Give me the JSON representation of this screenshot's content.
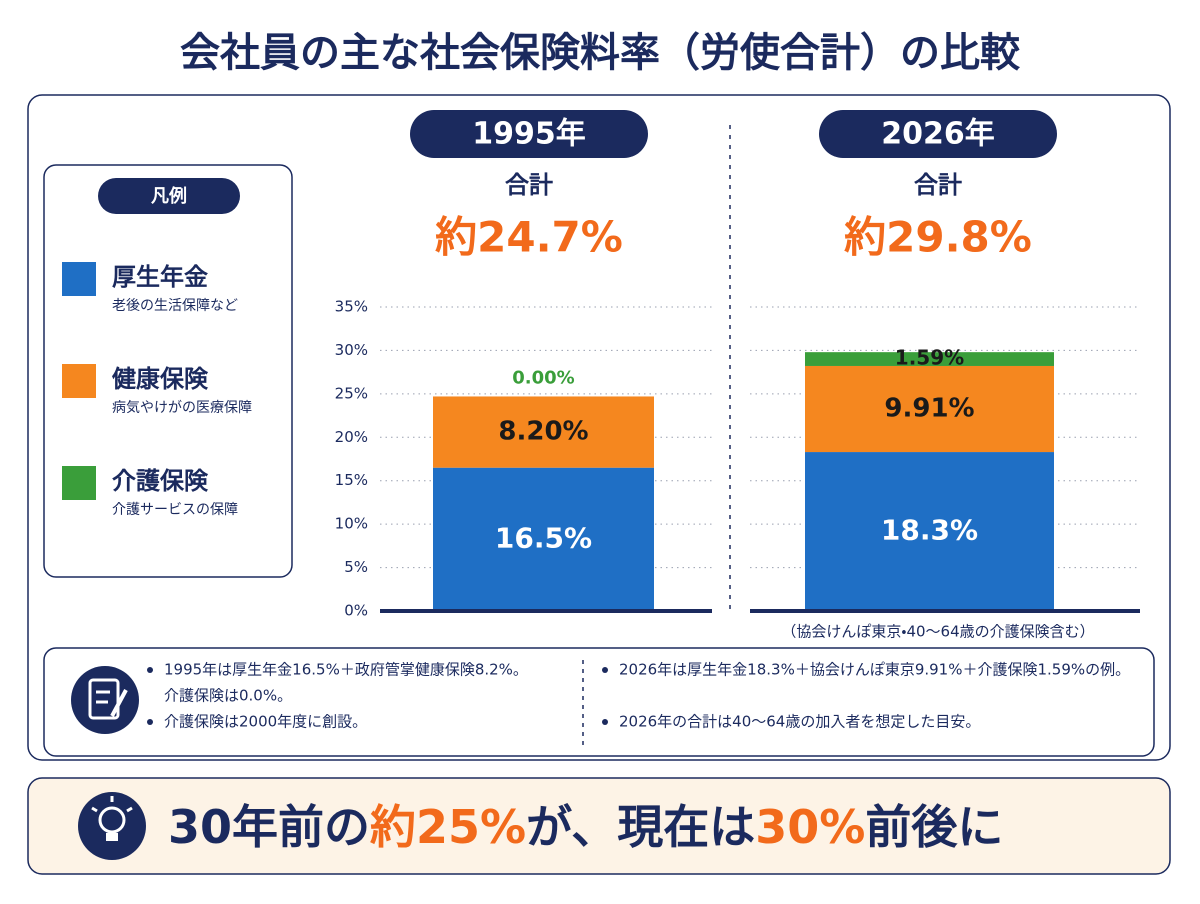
{
  "chart_data": {
    "type": "bar",
    "stacked": true,
    "title": "会社員の主な社会保険料率（労使合計）の比較",
    "legend_title": "凡例",
    "categories": [
      "1995年",
      "2026年"
    ],
    "total_caption": "合計",
    "total_labels": [
      "約24.7%",
      "約29.8%"
    ],
    "category_note": "（協会けんぽ東京・40～64歳の介護保険含む）",
    "series": [
      {
        "name": "厚生年金",
        "description": "老後の生活保障など",
        "color": "#1f6fc5",
        "values": [
          16.5,
          18.3
        ],
        "value_labels": [
          "16.5%",
          "18.3%"
        ]
      },
      {
        "name": "健康保険",
        "description": "病気やけがの医療保障",
        "color": "#f5871f",
        "values": [
          8.2,
          9.91
        ],
        "value_labels": [
          "8.20%",
          "9.91%"
        ]
      },
      {
        "name": "介護保険",
        "description": "介護サービスの保障",
        "color": "#3a9e3a",
        "values": [
          0,
          1.59
        ],
        "value_labels": [
          "0.00%",
          "1.59%"
        ]
      }
    ],
    "ylim": [
      0,
      35
    ],
    "yticks": [
      {
        "value": 0,
        "label": "0%"
      },
      {
        "value": 5,
        "label": "5%"
      },
      {
        "value": 10,
        "label": "10%"
      },
      {
        "value": 15,
        "label": "15%"
      },
      {
        "value": 20,
        "label": "20%"
      },
      {
        "value": 25,
        "label": "25%"
      },
      {
        "value": 30,
        "label": "30%"
      },
      {
        "value": 35,
        "label": "35%"
      }
    ],
    "grid": true
  },
  "notes": {
    "left": [
      [
        "1995年は厚生年金16.5%＋政府管掌健康保険8.2%。",
        "介護保険は0.0%。"
      ],
      [
        "介護保険は2000年度に創設。"
      ]
    ],
    "right": [
      [
        "2026年は厚生年金18.3%＋協会けんぽ東京9.91%＋介護保険1.59%の例。"
      ],
      [
        "2026年の合計は40～64歳の加入者を想定した目安。"
      ]
    ]
  },
  "banner": [
    {
      "text": "30年前の",
      "accent": false
    },
    {
      "text": "約25%",
      "accent": true
    },
    {
      "text": "が、現在は",
      "accent": false
    },
    {
      "text": "30%",
      "accent": true
    },
    {
      "text": "前後",
      "accent": false
    },
    {
      "text": "に",
      "accent": false
    }
  ]
}
